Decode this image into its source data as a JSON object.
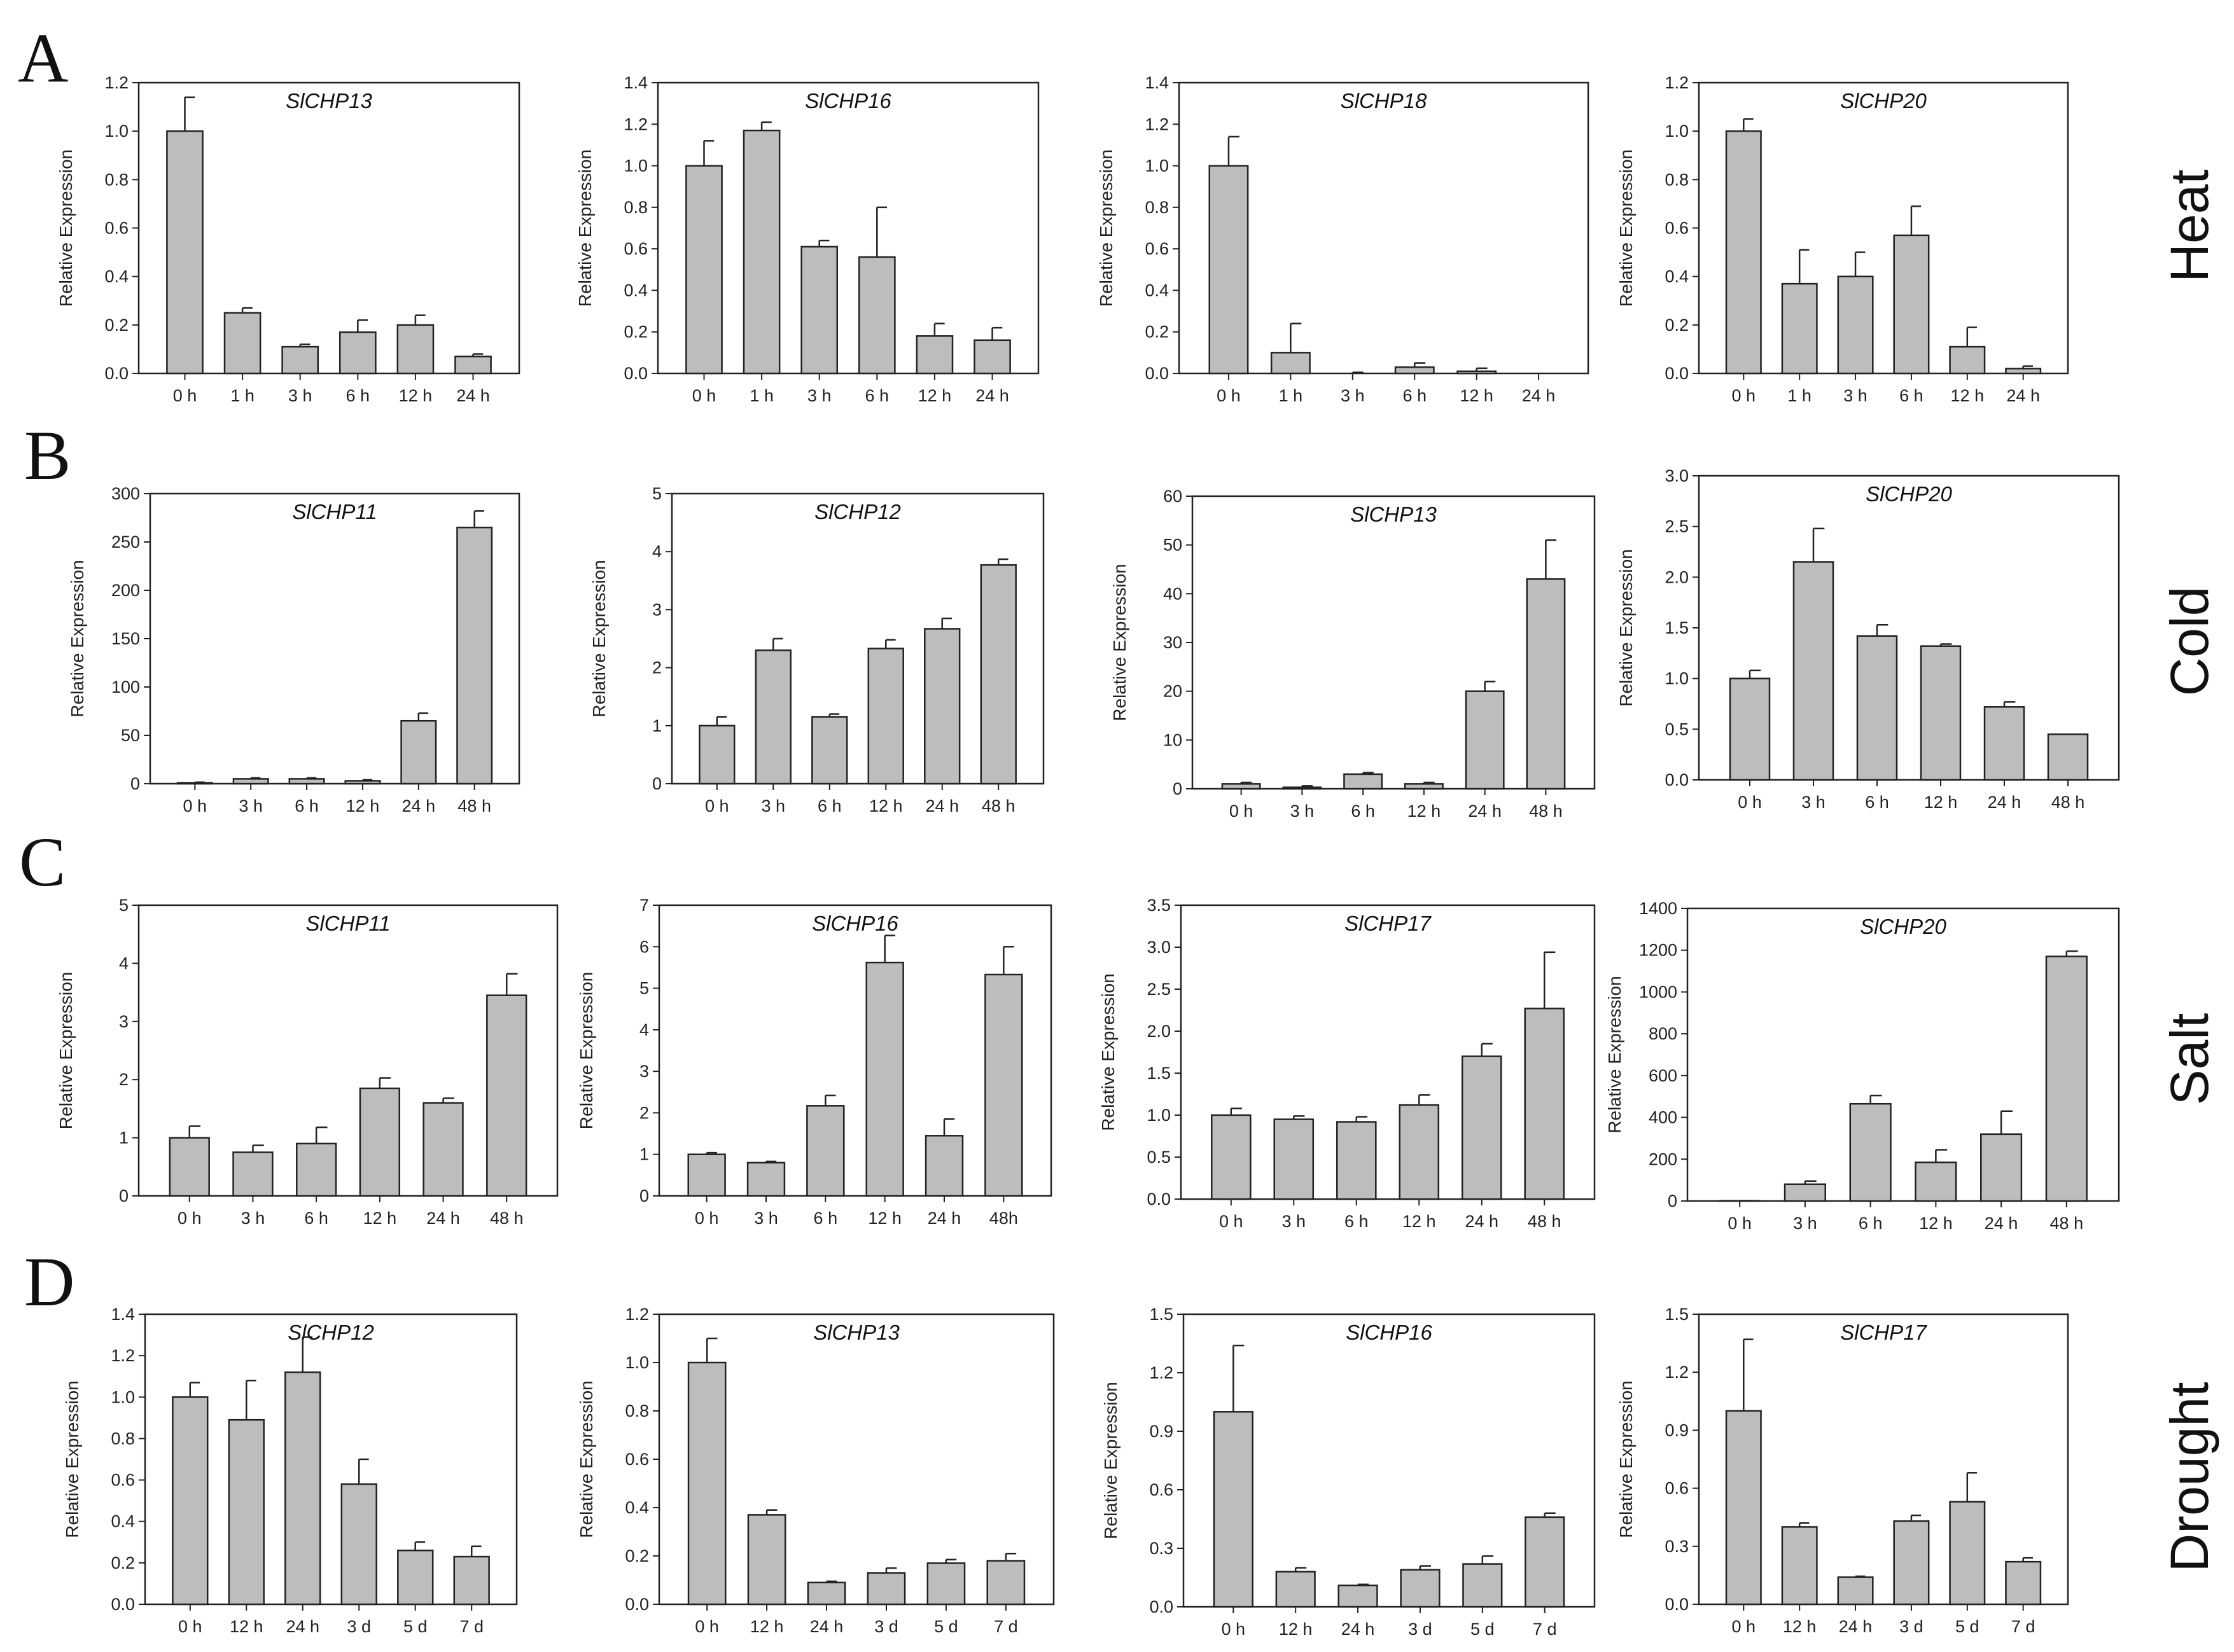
{
  "bar_color": "#bdbdbd",
  "edge_color": "#222222",
  "rows": [
    {
      "label": "A",
      "condition": "Heat"
    },
    {
      "label": "B",
      "condition": "Cold"
    },
    {
      "label": "C",
      "condition": "Salt"
    },
    {
      "label": "D",
      "condition": "Drought"
    }
  ],
  "chart_data": [
    {
      "type": "bar",
      "title": "SlCHP13",
      "ylabel": "Relative Expression",
      "categories": [
        "0 h",
        "1 h",
        "3 h",
        "6 h",
        "12 h",
        "24 h"
      ],
      "values": [
        1.0,
        0.25,
        0.11,
        0.17,
        0.2,
        0.07
      ],
      "errors": [
        0.14,
        0.02,
        0.01,
        0.05,
        0.04,
        0.01
      ],
      "ylim": [
        0,
        1.2
      ],
      "yticks": [
        "0.0",
        "0.2",
        "0.4",
        "0.6",
        "0.8",
        "1.0",
        "1.2"
      ]
    },
    {
      "type": "bar",
      "title": "SlCHP16",
      "ylabel": "Relative Expression",
      "categories": [
        "0 h",
        "1 h",
        "3 h",
        "6 h",
        "12 h",
        "24 h"
      ],
      "values": [
        1.0,
        1.17,
        0.61,
        0.56,
        0.18,
        0.16
      ],
      "errors": [
        0.12,
        0.04,
        0.03,
        0.24,
        0.06,
        0.06
      ],
      "ylim": [
        0,
        1.4
      ],
      "yticks": [
        "0.0",
        "0.2",
        "0.4",
        "0.6",
        "0.8",
        "1.0",
        "1.2",
        "1.4"
      ]
    },
    {
      "type": "bar",
      "title": "SlCHP18",
      "ylabel": "Relative Expression",
      "categories": [
        "0 h",
        "1 h",
        "3 h",
        "6 h",
        "12 h",
        "24 h"
      ],
      "values": [
        1.0,
        0.1,
        0.0,
        0.03,
        0.01,
        0.0
      ],
      "errors": [
        0.14,
        0.14,
        0.005,
        0.02,
        0.015,
        0.0
      ],
      "ylim": [
        0,
        1.4
      ],
      "yticks": [
        "0.0",
        "0.2",
        "0.4",
        "0.6",
        "0.8",
        "1.0",
        "1.2",
        "1.4"
      ]
    },
    {
      "type": "bar",
      "title": "SlCHP20",
      "ylabel": "Relative Expression",
      "categories": [
        "0 h",
        "1 h",
        "3 h",
        "6 h",
        "12 h",
        "24 h"
      ],
      "values": [
        1.0,
        0.37,
        0.4,
        0.57,
        0.11,
        0.02
      ],
      "errors": [
        0.05,
        0.14,
        0.1,
        0.12,
        0.08,
        0.01
      ],
      "ylim": [
        0,
        1.2
      ],
      "yticks": [
        "0.0",
        "0.2",
        "0.4",
        "0.6",
        "0.8",
        "1.0",
        "1.2"
      ]
    },
    {
      "type": "bar",
      "title": "SlCHP11",
      "ylabel": "Relative Expression",
      "categories": [
        "0 h",
        "3 h",
        "6 h",
        "12 h",
        "24 h",
        "48 h"
      ],
      "values": [
        1,
        5,
        5,
        3,
        65,
        265
      ],
      "errors": [
        0.5,
        1,
        1,
        1,
        8,
        17
      ],
      "ylim": [
        0,
        300
      ],
      "yticks": [
        "0",
        "50",
        "100",
        "150",
        "200",
        "250",
        "300"
      ]
    },
    {
      "type": "bar",
      "title": "SlCHP12",
      "ylabel": "Relative Expression",
      "categories": [
        "0 h",
        "3 h",
        "6 h",
        "12 h",
        "24 h",
        "48 h"
      ],
      "values": [
        1.0,
        2.3,
        1.15,
        2.33,
        2.67,
        3.77
      ],
      "errors": [
        0.15,
        0.2,
        0.05,
        0.15,
        0.18,
        0.1
      ],
      "ylim": [
        0,
        5
      ],
      "yticks": [
        "0",
        "1",
        "2",
        "3",
        "4",
        "5"
      ]
    },
    {
      "type": "bar",
      "title": "SlCHP13",
      "ylabel": "Relative Expression",
      "categories": [
        "0 h",
        "3 h",
        "6 h",
        "12 h",
        "24 h",
        "48 h"
      ],
      "values": [
        1,
        0.3,
        3,
        1,
        20,
        43
      ],
      "errors": [
        0.3,
        0.3,
        0.3,
        0.3,
        2,
        8
      ],
      "ylim": [
        0,
        60
      ],
      "yticks": [
        "0",
        "10",
        "20",
        "30",
        "40",
        "50",
        "60"
      ]
    },
    {
      "type": "bar",
      "title": "SlCHP20",
      "ylabel": "Relative Expression",
      "categories": [
        "0 h",
        "3 h",
        "6 h",
        "12 h",
        "24 h",
        "48 h"
      ],
      "values": [
        1.0,
        2.15,
        1.42,
        1.32,
        0.72,
        0.45
      ],
      "errors": [
        0.08,
        0.33,
        0.11,
        0.02,
        0.05,
        0.0
      ],
      "ylim": [
        0,
        3.0
      ],
      "yticks": [
        "0.0",
        "0.5",
        "1.0",
        "1.5",
        "2.0",
        "2.5",
        "3.0"
      ]
    },
    {
      "type": "bar",
      "title": "SlCHP11",
      "ylabel": "Relative Expression",
      "categories": [
        "0 h",
        "3 h",
        "6 h",
        "12 h",
        "24 h",
        "48 h"
      ],
      "values": [
        1.0,
        0.75,
        0.9,
        1.85,
        1.6,
        3.45
      ],
      "errors": [
        0.2,
        0.12,
        0.28,
        0.18,
        0.08,
        0.37
      ],
      "ylim": [
        0,
        5
      ],
      "yticks": [
        "0",
        "1",
        "2",
        "3",
        "4",
        "5"
      ]
    },
    {
      "type": "bar",
      "title": "SlCHP16",
      "ylabel": "Relative Expression",
      "categories": [
        "0 h",
        "3 h",
        "6 h",
        "12 h",
        "24 h",
        "48h"
      ],
      "values": [
        1.0,
        0.8,
        2.17,
        5.62,
        1.45,
        5.33
      ],
      "errors": [
        0.04,
        0.03,
        0.25,
        0.65,
        0.4,
        0.67
      ],
      "ylim": [
        0,
        7
      ],
      "yticks": [
        "0",
        "1",
        "2",
        "3",
        "4",
        "5",
        "6",
        "7"
      ]
    },
    {
      "type": "bar",
      "title": "SlCHP17",
      "ylabel": "Relative Expression",
      "categories": [
        "0 h",
        "3 h",
        "6 h",
        "12 h",
        "24 h",
        "48 h"
      ],
      "values": [
        1.0,
        0.95,
        0.92,
        1.12,
        1.7,
        2.27
      ],
      "errors": [
        0.08,
        0.04,
        0.06,
        0.12,
        0.15,
        0.67
      ],
      "ylim": [
        0,
        3.5
      ],
      "yticks": [
        "0.0",
        "0.5",
        "1.0",
        "1.5",
        "2.0",
        "2.5",
        "3.0",
        "3.5"
      ]
    },
    {
      "type": "bar",
      "title": "SlCHP20",
      "ylabel": "Relative Expression",
      "categories": [
        "0 h",
        "3 h",
        "6 h",
        "12 h",
        "24 h",
        "48 h"
      ],
      "values": [
        1,
        80,
        465,
        185,
        320,
        1170
      ],
      "errors": [
        0.5,
        15,
        40,
        60,
        110,
        25
      ],
      "ylim": [
        0,
        1400
      ],
      "yticks": [
        "0",
        "200",
        "400",
        "600",
        "800",
        "1000",
        "1200",
        "1400"
      ]
    },
    {
      "type": "bar",
      "title": "SlCHP12",
      "ylabel": "Relative Expression",
      "categories": [
        "0 h",
        "12 h",
        "24 h",
        "3 d",
        "5 d",
        "7 d"
      ],
      "values": [
        1.0,
        0.89,
        1.12,
        0.58,
        0.26,
        0.23
      ],
      "errors": [
        0.07,
        0.19,
        0.17,
        0.12,
        0.04,
        0.05
      ],
      "ylim": [
        0,
        1.4
      ],
      "yticks": [
        "0.0",
        "0.2",
        "0.4",
        "0.6",
        "0.8",
        "1.0",
        "1.2",
        "1.4"
      ]
    },
    {
      "type": "bar",
      "title": "SlCHP13",
      "ylabel": "Relative Expression",
      "categories": [
        "0 h",
        "12 h",
        "24 h",
        "3 d",
        "5 d",
        "7 d"
      ],
      "values": [
        1.0,
        0.37,
        0.09,
        0.13,
        0.17,
        0.18
      ],
      "errors": [
        0.1,
        0.02,
        0.005,
        0.02,
        0.015,
        0.03
      ],
      "ylim": [
        0,
        1.2
      ],
      "yticks": [
        "0.0",
        "0.2",
        "0.4",
        "0.6",
        "0.8",
        "1.0",
        "1.2"
      ]
    },
    {
      "type": "bar",
      "title": "SlCHP16",
      "ylabel": "Relative Expression",
      "categories": [
        "0 h",
        "12 h",
        "24 h",
        "3 d",
        "5 d",
        "7 d"
      ],
      "values": [
        1.0,
        0.18,
        0.11,
        0.19,
        0.22,
        0.46
      ],
      "errors": [
        0.34,
        0.02,
        0.005,
        0.02,
        0.04,
        0.02
      ],
      "ylim": [
        0,
        1.5
      ],
      "yticks": [
        "0.0",
        "0.3",
        "0.6",
        "0.9",
        "1.2",
        "1.5"
      ]
    },
    {
      "type": "bar",
      "title": "SlCHP17",
      "ylabel": "Relative Expression",
      "categories": [
        "0 h",
        "12 h",
        "24 h",
        "3 d",
        "5 d",
        "7 d"
      ],
      "values": [
        1.0,
        0.4,
        0.14,
        0.43,
        0.53,
        0.22
      ],
      "errors": [
        0.37,
        0.02,
        0.005,
        0.03,
        0.15,
        0.02
      ],
      "ylim": [
        0,
        1.5
      ],
      "yticks": [
        "0.0",
        "0.3",
        "0.6",
        "0.9",
        "1.2",
        "1.5"
      ]
    }
  ]
}
